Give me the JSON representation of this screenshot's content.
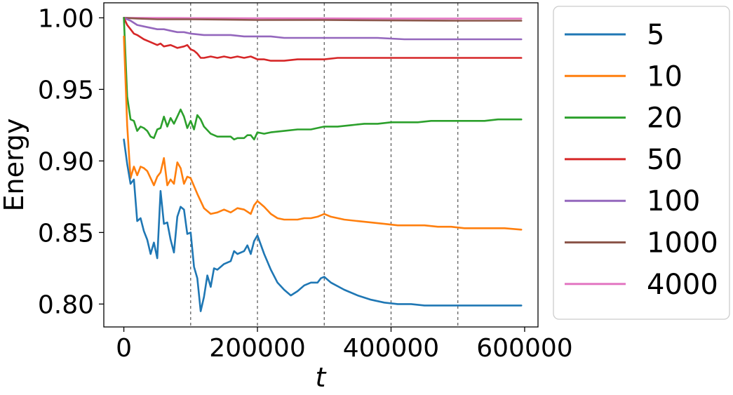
{
  "chart_data": {
    "type": "line",
    "xlabel": "t",
    "ylabel": "Energy",
    "xlim": [
      -30000,
      620000
    ],
    "ylim": [
      0.784,
      1.0105
    ],
    "x_ticks": [
      0,
      200000,
      400000,
      600000
    ],
    "x_tick_labels": [
      "0",
      "200000",
      "400000",
      "600000"
    ],
    "y_ticks": [
      0.8,
      0.85,
      0.9,
      0.95,
      1.0
    ],
    "y_tick_labels": [
      "0.80",
      "0.85",
      "0.90",
      "0.95",
      "1.00"
    ],
    "vlines": [
      100000,
      200000,
      300000,
      400000,
      500000
    ],
    "grid": false,
    "legend_placement": "outside right",
    "series": [
      {
        "name": "5",
        "color": "#1f77b4",
        "points": [
          [
            0,
            0.915
          ],
          [
            5000,
            0.898
          ],
          [
            10000,
            0.884
          ],
          [
            15000,
            0.887
          ],
          [
            20000,
            0.858
          ],
          [
            25000,
            0.86
          ],
          [
            30000,
            0.851
          ],
          [
            35000,
            0.845
          ],
          [
            40000,
            0.835
          ],
          [
            45000,
            0.843
          ],
          [
            50000,
            0.832
          ],
          [
            55000,
            0.879
          ],
          [
            60000,
            0.856
          ],
          [
            65000,
            0.857
          ],
          [
            70000,
            0.845
          ],
          [
            75000,
            0.836
          ],
          [
            80000,
            0.861
          ],
          [
            85000,
            0.868
          ],
          [
            90000,
            0.866
          ],
          [
            95000,
            0.849
          ],
          [
            100000,
            0.85
          ],
          [
            105000,
            0.826
          ],
          [
            110000,
            0.818
          ],
          [
            115000,
            0.795
          ],
          [
            120000,
            0.805
          ],
          [
            125000,
            0.82
          ],
          [
            130000,
            0.812
          ],
          [
            135000,
            0.825
          ],
          [
            140000,
            0.824
          ],
          [
            150000,
            0.828
          ],
          [
            160000,
            0.83
          ],
          [
            165000,
            0.837
          ],
          [
            170000,
            0.835
          ],
          [
            180000,
            0.837
          ],
          [
            185000,
            0.841
          ],
          [
            190000,
            0.835
          ],
          [
            195000,
            0.844
          ],
          [
            200000,
            0.848
          ],
          [
            210000,
            0.835
          ],
          [
            220000,
            0.824
          ],
          [
            230000,
            0.815
          ],
          [
            240000,
            0.81
          ],
          [
            250000,
            0.806
          ],
          [
            260000,
            0.809
          ],
          [
            270000,
            0.813
          ],
          [
            280000,
            0.815
          ],
          [
            290000,
            0.815
          ],
          [
            295000,
            0.818
          ],
          [
            300000,
            0.819
          ],
          [
            310000,
            0.815
          ],
          [
            330000,
            0.81
          ],
          [
            350000,
            0.806
          ],
          [
            370000,
            0.803
          ],
          [
            390000,
            0.801
          ],
          [
            410000,
            0.8
          ],
          [
            430000,
            0.8
          ],
          [
            450000,
            0.799
          ],
          [
            470000,
            0.799
          ],
          [
            490000,
            0.799
          ],
          [
            510000,
            0.799
          ],
          [
            530000,
            0.799
          ],
          [
            550000,
            0.799
          ],
          [
            570000,
            0.799
          ],
          [
            595000,
            0.799
          ]
        ]
      },
      {
        "name": "10",
        "color": "#ff7f0e",
        "points": [
          [
            0,
            0.987
          ],
          [
            5000,
            0.925
          ],
          [
            10000,
            0.888
          ],
          [
            15000,
            0.896
          ],
          [
            20000,
            0.89
          ],
          [
            25000,
            0.896
          ],
          [
            30000,
            0.895
          ],
          [
            35000,
            0.893
          ],
          [
            40000,
            0.888
          ],
          [
            45000,
            0.883
          ],
          [
            50000,
            0.889
          ],
          [
            55000,
            0.892
          ],
          [
            60000,
            0.902
          ],
          [
            65000,
            0.883
          ],
          [
            70000,
            0.887
          ],
          [
            75000,
            0.884
          ],
          [
            80000,
            0.899
          ],
          [
            85000,
            0.895
          ],
          [
            90000,
            0.884
          ],
          [
            95000,
            0.889
          ],
          [
            100000,
            0.888
          ],
          [
            110000,
            0.877
          ],
          [
            120000,
            0.867
          ],
          [
            130000,
            0.863
          ],
          [
            140000,
            0.864
          ],
          [
            150000,
            0.866
          ],
          [
            160000,
            0.864
          ],
          [
            170000,
            0.867
          ],
          [
            180000,
            0.866
          ],
          [
            190000,
            0.863
          ],
          [
            195000,
            0.869
          ],
          [
            200000,
            0.872
          ],
          [
            210000,
            0.868
          ],
          [
            220000,
            0.863
          ],
          [
            230000,
            0.86
          ],
          [
            240000,
            0.859
          ],
          [
            250000,
            0.859
          ],
          [
            260000,
            0.859
          ],
          [
            270000,
            0.86
          ],
          [
            280000,
            0.86
          ],
          [
            290000,
            0.861
          ],
          [
            300000,
            0.863
          ],
          [
            310000,
            0.861
          ],
          [
            330000,
            0.859
          ],
          [
            350000,
            0.858
          ],
          [
            370000,
            0.857
          ],
          [
            390000,
            0.856
          ],
          [
            410000,
            0.855
          ],
          [
            430000,
            0.855
          ],
          [
            450000,
            0.855
          ],
          [
            470000,
            0.854
          ],
          [
            490000,
            0.854
          ],
          [
            510000,
            0.853
          ],
          [
            530000,
            0.853
          ],
          [
            550000,
            0.853
          ],
          [
            570000,
            0.853
          ],
          [
            595000,
            0.852
          ]
        ]
      },
      {
        "name": "20",
        "color": "#2ca02c",
        "points": [
          [
            0,
            1.0
          ],
          [
            5000,
            0.945
          ],
          [
            10000,
            0.929
          ],
          [
            15000,
            0.928
          ],
          [
            20000,
            0.921
          ],
          [
            25000,
            0.924
          ],
          [
            30000,
            0.923
          ],
          [
            35000,
            0.921
          ],
          [
            40000,
            0.917
          ],
          [
            45000,
            0.916
          ],
          [
            50000,
            0.922
          ],
          [
            55000,
            0.923
          ],
          [
            60000,
            0.931
          ],
          [
            65000,
            0.924
          ],
          [
            70000,
            0.93
          ],
          [
            75000,
            0.926
          ],
          [
            80000,
            0.931
          ],
          [
            85000,
            0.936
          ],
          [
            90000,
            0.931
          ],
          [
            95000,
            0.923
          ],
          [
            100000,
            0.928
          ],
          [
            105000,
            0.922
          ],
          [
            110000,
            0.932
          ],
          [
            115000,
            0.929
          ],
          [
            120000,
            0.924
          ],
          [
            130000,
            0.919
          ],
          [
            140000,
            0.917
          ],
          [
            150000,
            0.917
          ],
          [
            160000,
            0.917
          ],
          [
            165000,
            0.915
          ],
          [
            170000,
            0.916
          ],
          [
            180000,
            0.916
          ],
          [
            185000,
            0.918
          ],
          [
            190000,
            0.918
          ],
          [
            195000,
            0.915
          ],
          [
            200000,
            0.92
          ],
          [
            210000,
            0.919
          ],
          [
            220000,
            0.92
          ],
          [
            240000,
            0.921
          ],
          [
            260000,
            0.922
          ],
          [
            280000,
            0.922
          ],
          [
            300000,
            0.924
          ],
          [
            320000,
            0.924
          ],
          [
            340000,
            0.925
          ],
          [
            360000,
            0.926
          ],
          [
            380000,
            0.926
          ],
          [
            400000,
            0.927
          ],
          [
            420000,
            0.927
          ],
          [
            440000,
            0.927
          ],
          [
            460000,
            0.928
          ],
          [
            480000,
            0.928
          ],
          [
            500000,
            0.928
          ],
          [
            520000,
            0.928
          ],
          [
            540000,
            0.928
          ],
          [
            560000,
            0.929
          ],
          [
            595000,
            0.929
          ]
        ]
      },
      {
        "name": "50",
        "color": "#d62728",
        "points": [
          [
            0,
            1.0
          ],
          [
            5000,
            0.995
          ],
          [
            10000,
            0.992
          ],
          [
            15000,
            0.989
          ],
          [
            20000,
            0.988
          ],
          [
            30000,
            0.985
          ],
          [
            40000,
            0.983
          ],
          [
            50000,
            0.981
          ],
          [
            55000,
            0.982
          ],
          [
            60000,
            0.98
          ],
          [
            70000,
            0.981
          ],
          [
            75000,
            0.98
          ],
          [
            80000,
            0.979
          ],
          [
            90000,
            0.98
          ],
          [
            95000,
            0.981
          ],
          [
            100000,
            0.978
          ],
          [
            105000,
            0.977
          ],
          [
            110000,
            0.975
          ],
          [
            115000,
            0.972
          ],
          [
            120000,
            0.972
          ],
          [
            130000,
            0.973
          ],
          [
            140000,
            0.972
          ],
          [
            150000,
            0.973
          ],
          [
            160000,
            0.972
          ],
          [
            170000,
            0.973
          ],
          [
            180000,
            0.972
          ],
          [
            190000,
            0.973
          ],
          [
            200000,
            0.971
          ],
          [
            210000,
            0.971
          ],
          [
            220000,
            0.97
          ],
          [
            240000,
            0.97
          ],
          [
            260000,
            0.971
          ],
          [
            280000,
            0.971
          ],
          [
            300000,
            0.971
          ],
          [
            320000,
            0.972
          ],
          [
            340000,
            0.972
          ],
          [
            360000,
            0.972
          ],
          [
            380000,
            0.972
          ],
          [
            400000,
            0.972
          ],
          [
            440000,
            0.972
          ],
          [
            480000,
            0.972
          ],
          [
            520000,
            0.972
          ],
          [
            560000,
            0.972
          ],
          [
            595000,
            0.972
          ]
        ]
      },
      {
        "name": "100",
        "color": "#9467bd",
        "points": [
          [
            0,
            1.0
          ],
          [
            10000,
            0.998
          ],
          [
            20000,
            0.995
          ],
          [
            30000,
            0.994
          ],
          [
            40000,
            0.993
          ],
          [
            50000,
            0.992
          ],
          [
            60000,
            0.992
          ],
          [
            70000,
            0.991
          ],
          [
            80000,
            0.99
          ],
          [
            90000,
            0.99
          ],
          [
            100000,
            0.989
          ],
          [
            120000,
            0.988
          ],
          [
            140000,
            0.988
          ],
          [
            160000,
            0.988
          ],
          [
            180000,
            0.987
          ],
          [
            200000,
            0.987
          ],
          [
            220000,
            0.987
          ],
          [
            240000,
            0.986
          ],
          [
            260000,
            0.986
          ],
          [
            280000,
            0.986
          ],
          [
            300000,
            0.986
          ],
          [
            340000,
            0.986
          ],
          [
            380000,
            0.986
          ],
          [
            420000,
            0.985
          ],
          [
            460000,
            0.985
          ],
          [
            500000,
            0.985
          ],
          [
            540000,
            0.985
          ],
          [
            595000,
            0.985
          ]
        ]
      },
      {
        "name": "1000",
        "color": "#8c564b",
        "points": [
          [
            0,
            1.0
          ],
          [
            20000,
            0.9995
          ],
          [
            50000,
            0.999
          ],
          [
            100000,
            0.999
          ],
          [
            150000,
            0.9988
          ],
          [
            200000,
            0.9985
          ],
          [
            300000,
            0.9985
          ],
          [
            400000,
            0.9982
          ],
          [
            500000,
            0.998
          ],
          [
            595000,
            0.998
          ]
        ]
      },
      {
        "name": "4000",
        "color": "#e377c2",
        "points": [
          [
            0,
            1.0
          ],
          [
            100000,
            0.9998
          ],
          [
            200000,
            0.9997
          ],
          [
            300000,
            0.9996
          ],
          [
            400000,
            0.9995
          ],
          [
            500000,
            0.9995
          ],
          [
            595000,
            0.9995
          ]
        ]
      }
    ]
  }
}
